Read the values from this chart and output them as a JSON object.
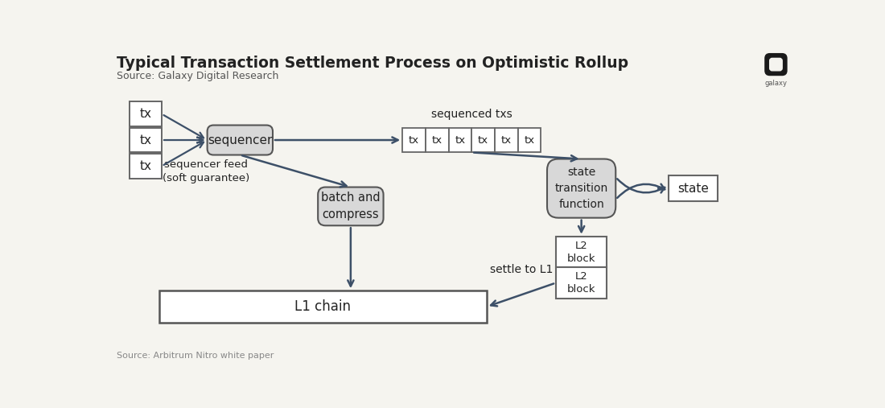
{
  "title": "Typical Transaction Settlement Process on Optimistic Rollup",
  "source_top": "Source: Galaxy Digital Research",
  "source_bottom": "Source: Arbitrum Nitro white paper",
  "bg_color": "#f5f4ef",
  "arrow_color": "#3d5068",
  "box_color_white": "#ffffff",
  "box_color_gray": "#d8d8d8",
  "text_color": "#222222",
  "sequenced_txs_label": "sequenced txs",
  "sequencer_feed_label": "sequencer feed\n(soft guarantee)",
  "settle_to_l1_label": "settle to L1",
  "state_label": "state\ntransition\nfunction",
  "state_box_label": "state",
  "sequencer_label": "sequencer",
  "batch_label": "batch and\ncompress",
  "l1_chain_label": "L1 chain",
  "l2_block_label": "L2\nblock"
}
